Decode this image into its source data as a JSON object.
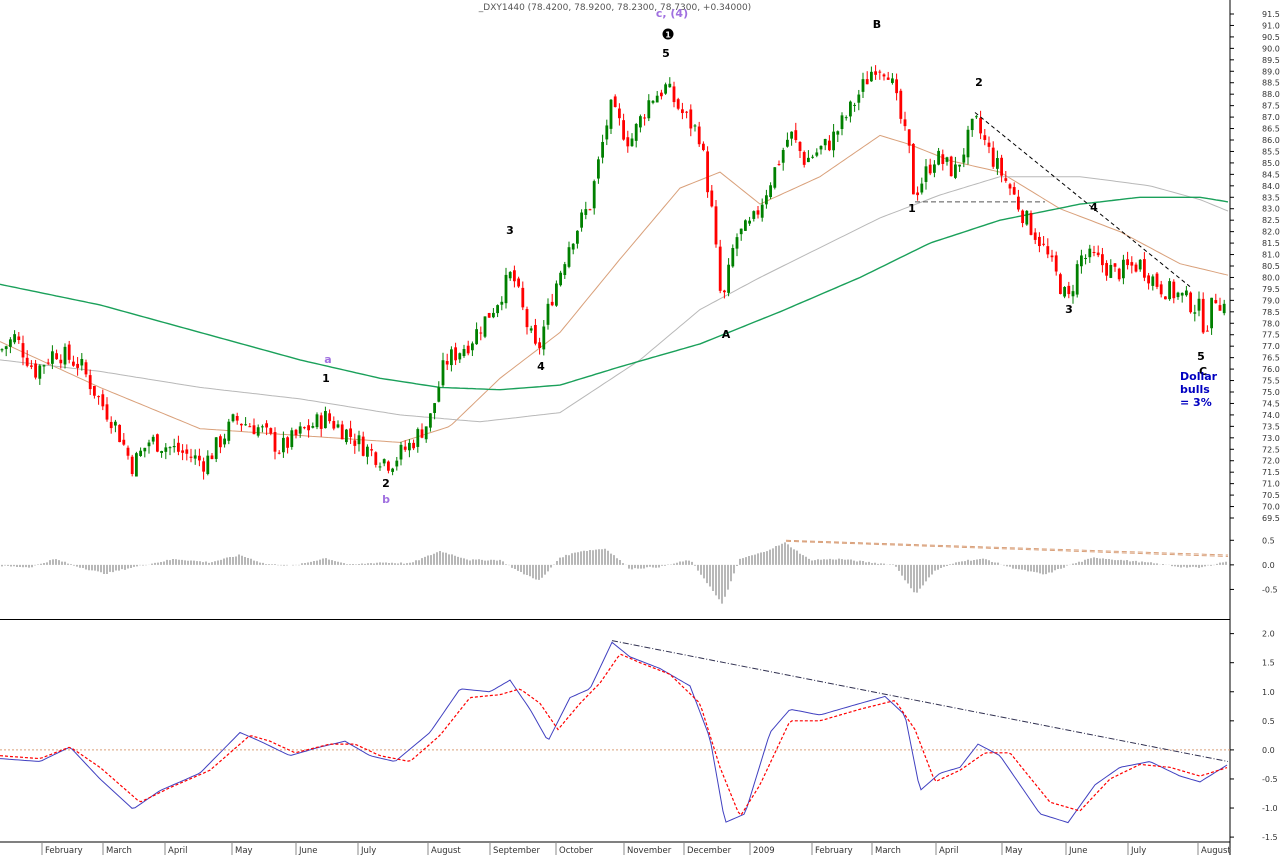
{
  "header": {
    "title": "_DXY1440 (78.4200, 78.9200, 78.2300, 78.7300, +0.34000)"
  },
  "colors": {
    "bull_candle": "#008000",
    "bear_candle": "#ff0000",
    "ma_orange": "#d9a07a",
    "ma_gray": "#b8b8b8",
    "ma_green": "#1aa05a",
    "wave_purple": "#a070e0",
    "annotation_blue": "#0000c0",
    "osc_blue": "#4040c0",
    "osc_red": "#ff0000",
    "histogram": "#707070",
    "trendline": "#303050"
  },
  "chart_data": [
    {
      "type": "candlestick",
      "series_name": "_DXY1440",
      "price_axis": {
        "min": 69.5,
        "max": 91.5,
        "step": 0.5,
        "ticks": [
          "91.5",
          "91.0",
          "90.5",
          "90.0",
          "89.5",
          "89.0",
          "88.5",
          "88.0",
          "87.5",
          "87.0",
          "86.5",
          "86.0",
          "85.5",
          "85.0",
          "84.5",
          "84.0",
          "83.5",
          "83.0",
          "82.5",
          "82.0",
          "81.5",
          "81.0",
          "80.5",
          "80.0",
          "79.5",
          "79.0",
          "78.5",
          "78.0",
          "77.5",
          "77.0",
          "76.5",
          "76.0",
          "75.5",
          "75.0",
          "74.5",
          "74.0",
          "73.5",
          "73.0",
          "72.5",
          "72.0",
          "71.5",
          "71.0",
          "70.5",
          "70.0",
          "69.5"
        ]
      },
      "time_axis": {
        "ticks": [
          "February",
          "March",
          "April",
          "May",
          "June",
          "July",
          "August",
          "September",
          "October",
          "November",
          "December",
          "2009",
          "February",
          "March",
          "April",
          "May",
          "June",
          "July",
          "August"
        ]
      },
      "price_path": [
        [
          0,
          76.8
        ],
        [
          15,
          77.4
        ],
        [
          35,
          75.9
        ],
        [
          55,
          76.8
        ],
        [
          80,
          76.2
        ],
        [
          100,
          74.6
        ],
        [
          115,
          73.6
        ],
        [
          132,
          71.8
        ],
        [
          150,
          72.9
        ],
        [
          180,
          72.4
        ],
        [
          205,
          71.9
        ],
        [
          235,
          73.8
        ],
        [
          260,
          73.4
        ],
        [
          280,
          72.5
        ],
        [
          300,
          73.2
        ],
        [
          325,
          73.9
        ],
        [
          345,
          73.3
        ],
        [
          370,
          72.4
        ],
        [
          390,
          71.9
        ],
        [
          410,
          72.7
        ],
        [
          430,
          73.8
        ],
        [
          445,
          76.3
        ],
        [
          470,
          77.2
        ],
        [
          495,
          78.8
        ],
        [
          512,
          80.2
        ],
        [
          525,
          78.2
        ],
        [
          537,
          76.6
        ],
        [
          550,
          78.9
        ],
        [
          570,
          81.6
        ],
        [
          590,
          83.2
        ],
        [
          610,
          87.4
        ],
        [
          630,
          85.9
        ],
        [
          650,
          87.8
        ],
        [
          666,
          88.3
        ],
        [
          680,
          87.3
        ],
        [
          700,
          86.2
        ],
        [
          712,
          82.8
        ],
        [
          722,
          78.6
        ],
        [
          735,
          81.7
        ],
        [
          752,
          82.3
        ],
        [
          770,
          84.2
        ],
        [
          790,
          86.3
        ],
        [
          805,
          85.1
        ],
        [
          830,
          85.9
        ],
        [
          850,
          87.3
        ],
        [
          875,
          89.3
        ],
        [
          888,
          89.1
        ],
        [
          910,
          85.3
        ],
        [
          914,
          83.6
        ],
        [
          935,
          85.3
        ],
        [
          955,
          84.6
        ],
        [
          975,
          86.8
        ],
        [
          990,
          85.4
        ],
        [
          1010,
          83.9
        ],
        [
          1025,
          82.6
        ],
        [
          1040,
          81.6
        ],
        [
          1055,
          80.2
        ],
        [
          1068,
          78.9
        ],
        [
          1080,
          80.9
        ],
        [
          1095,
          80.8
        ],
        [
          1115,
          80.2
        ],
        [
          1140,
          80.6
        ],
        [
          1160,
          79.6
        ],
        [
          1180,
          79.2
        ],
        [
          1200,
          78.6
        ],
        [
          1205,
          77.7
        ],
        [
          1215,
          79.2
        ],
        [
          1228,
          78.6
        ]
      ],
      "moving_averages": [
        {
          "color_key": "ma_orange",
          "points": [
            [
              0,
              77.2
            ],
            [
              100,
              75.2
            ],
            [
              200,
              73.4
            ],
            [
              300,
              73.1
            ],
            [
              400,
              72.8
            ],
            [
              450,
              73.5
            ],
            [
              500,
              75.6
            ],
            [
              560,
              77.6
            ],
            [
              620,
              80.8
            ],
            [
              680,
              83.9
            ],
            [
              720,
              84.6
            ],
            [
              760,
              83.2
            ],
            [
              820,
              84.4
            ],
            [
              880,
              86.2
            ],
            [
              910,
              85.8
            ],
            [
              950,
              85.1
            ],
            [
              1000,
              84.6
            ],
            [
              1060,
              83.0
            ],
            [
              1120,
              82.0
            ],
            [
              1180,
              80.6
            ],
            [
              1228,
              80.1
            ]
          ]
        },
        {
          "color_key": "ma_gray",
          "points": [
            [
              0,
              76.4
            ],
            [
              100,
              75.9
            ],
            [
              200,
              75.2
            ],
            [
              300,
              74.7
            ],
            [
              400,
              74.0
            ],
            [
              480,
              73.7
            ],
            [
              560,
              74.1
            ],
            [
              640,
              76.4
            ],
            [
              700,
              78.6
            ],
            [
              760,
              80.0
            ],
            [
              820,
              81.3
            ],
            [
              880,
              82.6
            ],
            [
              940,
              83.6
            ],
            [
              1000,
              84.4
            ],
            [
              1080,
              84.4
            ],
            [
              1150,
              84.0
            ],
            [
              1200,
              83.4
            ],
            [
              1228,
              82.9
            ]
          ]
        },
        {
          "color_key": "ma_green",
          "points": [
            [
              0,
              79.7
            ],
            [
              100,
              78.8
            ],
            [
              200,
              77.6
            ],
            [
              300,
              76.4
            ],
            [
              380,
              75.6
            ],
            [
              440,
              75.2
            ],
            [
              500,
              75.1
            ],
            [
              560,
              75.3
            ],
            [
              620,
              76.1
            ],
            [
              700,
              77.1
            ],
            [
              780,
              78.5
            ],
            [
              860,
              80.0
            ],
            [
              930,
              81.5
            ],
            [
              1000,
              82.5
            ],
            [
              1080,
              83.2
            ],
            [
              1140,
              83.5
            ],
            [
              1200,
              83.5
            ],
            [
              1228,
              83.3
            ]
          ]
        }
      ],
      "wave_labels": [
        {
          "text": "c, (4)",
          "x": 80.0,
          "y": 91.4,
          "color_key": "wave_purple"
        },
        {
          "text": "5",
          "x": 88.3,
          "y": 89.3,
          "color_key": ""
        },
        {
          "text": "B",
          "x": 90.3,
          "y": 90.3,
          "color_key": ""
        },
        {
          "text": "2",
          "x": 87.3,
          "y": 87.3,
          "color_key": ""
        },
        {
          "text": "3",
          "x": 80.4,
          "y": 80.4,
          "color_key": ""
        },
        {
          "text": "4",
          "x": 76.1,
          "y": 76.1,
          "color_key": ""
        },
        {
          "text": "A",
          "x": 77.4,
          "y": 77.4,
          "color_key": ""
        },
        {
          "text": "1",
          "x": 82.3,
          "y": 82.3,
          "color_key": ""
        },
        {
          "text": "4",
          "x": 82.0,
          "y": 82.0,
          "color_key": ""
        },
        {
          "text": "3",
          "x": 77.8,
          "y": 77.8,
          "color_key": ""
        },
        {
          "text": "5",
          "x": 77.3,
          "y": 77.3,
          "color_key": ""
        },
        {
          "text": "C",
          "x": 76.6,
          "y": 76.6,
          "color_key": ""
        },
        {
          "text": "a",
          "x": 75.7,
          "y": 75.7,
          "color_key": "wave_purple"
        },
        {
          "text": "1",
          "x": 74.6,
          "y": 74.6,
          "color_key": ""
        },
        {
          "text": "2",
          "x": 70.9,
          "y": 70.9,
          "color_key": ""
        },
        {
          "text": "b",
          "x": 70.2,
          "y": 70.2,
          "color_key": "wave_purple"
        }
      ],
      "annotation": {
        "lines": [
          "Dollar",
          "bulls",
          "= 3%"
        ],
        "color_key": "annotation_blue"
      }
    },
    {
      "type": "bar",
      "series_name": "histogram",
      "y_axis": {
        "min": -1.0,
        "max": 0.75,
        "ticks": [
          "0.5",
          "0.0",
          "-0.5"
        ]
      },
      "values_path": [
        [
          0,
          -0.02
        ],
        [
          30,
          -0.05
        ],
        [
          55,
          0.12
        ],
        [
          75,
          -0.02
        ],
        [
          105,
          -0.18
        ],
        [
          135,
          -0.04
        ],
        [
          175,
          0.12
        ],
        [
          210,
          0.05
        ],
        [
          240,
          0.2
        ],
        [
          265,
          0.02
        ],
        [
          295,
          -0.02
        ],
        [
          325,
          0.14
        ],
        [
          350,
          0.0
        ],
        [
          380,
          0.05
        ],
        [
          410,
          0.03
        ],
        [
          440,
          0.28
        ],
        [
          470,
          0.1
        ],
        [
          500,
          0.1
        ],
        [
          520,
          -0.15
        ],
        [
          540,
          -0.32
        ],
        [
          560,
          0.15
        ],
        [
          580,
          0.28
        ],
        [
          606,
          0.33
        ],
        [
          630,
          -0.08
        ],
        [
          660,
          -0.04
        ],
        [
          690,
          0.1
        ],
        [
          705,
          -0.3
        ],
        [
          722,
          -0.8
        ],
        [
          740,
          0.12
        ],
        [
          762,
          0.25
        ],
        [
          785,
          0.45
        ],
        [
          810,
          0.1
        ],
        [
          840,
          0.12
        ],
        [
          870,
          0.05
        ],
        [
          895,
          0.0
        ],
        [
          915,
          -0.6
        ],
        [
          935,
          -0.12
        ],
        [
          960,
          0.08
        ],
        [
          985,
          0.12
        ],
        [
          1010,
          -0.05
        ],
        [
          1045,
          -0.2
        ],
        [
          1070,
          0.0
        ],
        [
          1095,
          0.15
        ],
        [
          1120,
          0.1
        ],
        [
          1150,
          0.04
        ],
        [
          1180,
          -0.04
        ],
        [
          1200,
          -0.06
        ],
        [
          1228,
          0.08
        ]
      ]
    },
    {
      "type": "line",
      "series_name": "oscillator",
      "y_axis": {
        "min": -1.55,
        "max": 2.2,
        "ticks": [
          "2.0",
          "1.5",
          "1.0",
          "0.5",
          "0.0",
          "-0.5",
          "-1.0",
          "-1.5"
        ]
      },
      "fast_path": [
        [
          0,
          -0.15
        ],
        [
          40,
          -0.2
        ],
        [
          70,
          0.05
        ],
        [
          100,
          -0.5
        ],
        [
          133,
          -1.02
        ],
        [
          160,
          -0.7
        ],
        [
          200,
          -0.4
        ],
        [
          240,
          0.3
        ],
        [
          260,
          0.15
        ],
        [
          290,
          -0.1
        ],
        [
          320,
          0.05
        ],
        [
          345,
          0.15
        ],
        [
          370,
          -0.1
        ],
        [
          395,
          -0.2
        ],
        [
          430,
          0.3
        ],
        [
          460,
          1.05
        ],
        [
          490,
          1.0
        ],
        [
          510,
          1.2
        ],
        [
          530,
          0.7
        ],
        [
          548,
          0.15
        ],
        [
          570,
          0.9
        ],
        [
          590,
          1.05
        ],
        [
          612,
          1.85
        ],
        [
          630,
          1.6
        ],
        [
          660,
          1.4
        ],
        [
          690,
          1.1
        ],
        [
          710,
          0.2
        ],
        [
          725,
          -1.25
        ],
        [
          745,
          -1.1
        ],
        [
          770,
          0.3
        ],
        [
          790,
          0.7
        ],
        [
          820,
          0.6
        ],
        [
          850,
          0.75
        ],
        [
          885,
          0.92
        ],
        [
          905,
          0.6
        ],
        [
          920,
          -0.7
        ],
        [
          940,
          -0.4
        ],
        [
          960,
          -0.3
        ],
        [
          978,
          0.1
        ],
        [
          1000,
          -0.1
        ],
        [
          1040,
          -1.1
        ],
        [
          1068,
          -1.25
        ],
        [
          1095,
          -0.6
        ],
        [
          1120,
          -0.3
        ],
        [
          1150,
          -0.2
        ],
        [
          1180,
          -0.45
        ],
        [
          1200,
          -0.55
        ],
        [
          1228,
          -0.25
        ]
      ],
      "slow_path": [
        [
          0,
          -0.1
        ],
        [
          40,
          -0.15
        ],
        [
          70,
          0.05
        ],
        [
          100,
          -0.3
        ],
        [
          140,
          -0.9
        ],
        [
          170,
          -0.65
        ],
        [
          210,
          -0.35
        ],
        [
          250,
          0.25
        ],
        [
          270,
          0.15
        ],
        [
          295,
          -0.05
        ],
        [
          330,
          0.1
        ],
        [
          355,
          0.1
        ],
        [
          380,
          -0.1
        ],
        [
          410,
          -0.2
        ],
        [
          440,
          0.25
        ],
        [
          470,
          0.9
        ],
        [
          500,
          0.95
        ],
        [
          520,
          1.05
        ],
        [
          540,
          0.8
        ],
        [
          558,
          0.35
        ],
        [
          580,
          0.8
        ],
        [
          600,
          1.15
        ],
        [
          620,
          1.65
        ],
        [
          640,
          1.5
        ],
        [
          670,
          1.3
        ],
        [
          700,
          0.8
        ],
        [
          720,
          -0.3
        ],
        [
          740,
          -1.15
        ],
        [
          760,
          -0.6
        ],
        [
          790,
          0.5
        ],
        [
          820,
          0.5
        ],
        [
          860,
          0.7
        ],
        [
          895,
          0.85
        ],
        [
          915,
          0.35
        ],
        [
          935,
          -0.55
        ],
        [
          960,
          -0.35
        ],
        [
          985,
          -0.05
        ],
        [
          1010,
          -0.05
        ],
        [
          1050,
          -0.9
        ],
        [
          1080,
          -1.05
        ],
        [
          1110,
          -0.5
        ],
        [
          1140,
          -0.25
        ],
        [
          1170,
          -0.3
        ],
        [
          1200,
          -0.45
        ],
        [
          1228,
          -0.3
        ]
      ]
    }
  ]
}
